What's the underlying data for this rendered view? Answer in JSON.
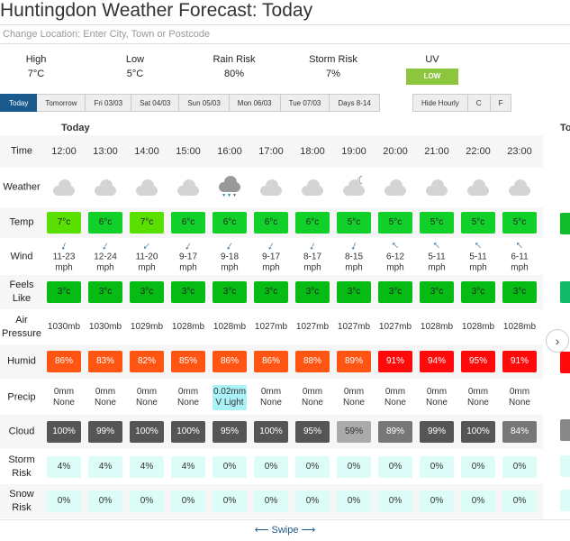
{
  "title": "Huntingdon Weather Forecast: Today",
  "location_placeholder": "Change Location: Enter City, Town or Postcode",
  "summary": {
    "high_label": "High",
    "high": "7°C",
    "low_label": "Low",
    "low": "5°C",
    "rain_label": "Rain Risk",
    "rain": "80%",
    "storm_label": "Storm Risk",
    "storm": "7%",
    "uv_label": "UV",
    "uv": "LOW",
    "uv_color": "#8cc63f"
  },
  "tabs": [
    "Today",
    "Tomorrow",
    "Fri 03/03",
    "Sat 04/03",
    "Sun 05/03",
    "Mon 06/03",
    "Tue 07/03",
    "Days 8-14"
  ],
  "active_tab": 0,
  "options": [
    "Hide Hourly",
    "C",
    "F"
  ],
  "day_label": "Today",
  "next_day_label": "To",
  "row_labels": {
    "time": "Time",
    "weather": "Weather",
    "temp": "Temp",
    "wind": "Wind",
    "feels": "Feels Like",
    "pressure": "Air Pressure",
    "humid": "Humid",
    "precip": "Precip",
    "cloud": "Cloud",
    "storm": "Storm Risk",
    "snow": "Snow Risk"
  },
  "hours": [
    {
      "time": "12:00",
      "weather": "cloud",
      "temp": "7°c",
      "wind": "11-23",
      "wind_dir_deg": 200,
      "feels": "3°c",
      "pressure": "1030mb",
      "humid": "86%",
      "precip_amt": "0mm",
      "precip_desc": "None",
      "cloud": "100%",
      "storm": "4%",
      "snow": "0%"
    },
    {
      "time": "13:00",
      "weather": "cloud",
      "temp": "6°c",
      "wind": "12-24",
      "wind_dir_deg": 210,
      "feels": "3°c",
      "pressure": "1030mb",
      "humid": "83%",
      "precip_amt": "0mm",
      "precip_desc": "None",
      "cloud": "99%",
      "storm": "4%",
      "snow": "0%"
    },
    {
      "time": "14:00",
      "weather": "cloud",
      "temp": "7°c",
      "wind": "11-20",
      "wind_dir_deg": 225,
      "feels": "3°c",
      "pressure": "1029mb",
      "humid": "82%",
      "precip_amt": "0mm",
      "precip_desc": "None",
      "cloud": "100%",
      "storm": "4%",
      "snow": "0%"
    },
    {
      "time": "15:00",
      "weather": "cloud",
      "temp": "6°c",
      "wind": "9-17",
      "wind_dir_deg": 210,
      "feels": "3°c",
      "pressure": "1028mb",
      "humid": "85%",
      "precip_amt": "0mm",
      "precip_desc": "None",
      "cloud": "100%",
      "storm": "4%",
      "snow": "0%"
    },
    {
      "time": "16:00",
      "weather": "rain",
      "temp": "6°c",
      "wind": "9-18",
      "wind_dir_deg": 210,
      "feels": "3°c",
      "pressure": "1028mb",
      "humid": "86%",
      "precip_amt": "0.02mm",
      "precip_desc": "V Light",
      "cloud": "95%",
      "storm": "0%",
      "snow": "0%"
    },
    {
      "time": "17:00",
      "weather": "cloud",
      "temp": "6°c",
      "wind": "9-17",
      "wind_dir_deg": 210,
      "feels": "3°c",
      "pressure": "1027mb",
      "humid": "86%",
      "precip_amt": "0mm",
      "precip_desc": "None",
      "cloud": "100%",
      "storm": "0%",
      "snow": "0%"
    },
    {
      "time": "18:00",
      "weather": "cloud",
      "temp": "6°c",
      "wind": "8-17",
      "wind_dir_deg": 205,
      "feels": "3°c",
      "pressure": "1027mb",
      "humid": "88%",
      "precip_amt": "0mm",
      "precip_desc": "None",
      "cloud": "95%",
      "storm": "0%",
      "snow": "0%"
    },
    {
      "time": "19:00",
      "weather": "partly-cloudy-night",
      "temp": "5°c",
      "wind": "8-15",
      "wind_dir_deg": 200,
      "feels": "3°c",
      "pressure": "1027mb",
      "humid": "89%",
      "precip_amt": "0mm",
      "precip_desc": "None",
      "cloud": "59%",
      "storm": "0%",
      "snow": "0%"
    },
    {
      "time": "20:00",
      "weather": "cloud",
      "temp": "5°c",
      "wind": "6-12",
      "wind_dir_deg": 315,
      "feels": "3°c",
      "pressure": "1027mb",
      "humid": "91%",
      "precip_amt": "0mm",
      "precip_desc": "None",
      "cloud": "89%",
      "storm": "0%",
      "snow": "0%"
    },
    {
      "time": "21:00",
      "weather": "cloud",
      "temp": "5°c",
      "wind": "5-11",
      "wind_dir_deg": 315,
      "feels": "3°c",
      "pressure": "1028mb",
      "humid": "94%",
      "precip_amt": "0mm",
      "precip_desc": "None",
      "cloud": "99%",
      "storm": "0%",
      "snow": "0%"
    },
    {
      "time": "22:00",
      "weather": "cloud",
      "temp": "5°c",
      "wind": "5-11",
      "wind_dir_deg": 315,
      "feels": "3°c",
      "pressure": "1028mb",
      "humid": "95%",
      "precip_amt": "0mm",
      "precip_desc": "None",
      "cloud": "100%",
      "storm": "0%",
      "snow": "0%"
    },
    {
      "time": "23:00",
      "weather": "cloud",
      "temp": "5°c",
      "wind": "6-11",
      "wind_dir_deg": 315,
      "feels": "3°c",
      "pressure": "1028mb",
      "humid": "91%",
      "precip_amt": "0mm",
      "precip_desc": "None",
      "cloud": "84%",
      "storm": "0%",
      "snow": "0%"
    }
  ],
  "wind_unit": "mph",
  "swipe_label": "⟵ Swipe ⟶",
  "colors": {
    "temp_7": "#5ae000",
    "temp_6": "#12d02a",
    "temp_5": "#12d02a",
    "feels": "#06bb14",
    "humid_orange": "#ff5512",
    "humid_red": "#ff0a0a",
    "cloud_dark": "#555555",
    "cloud_mid": "#777777",
    "cloud_light": "#aaaaaa",
    "risk_bg": "#dcfcf8",
    "precip_light": "#aaf2f8",
    "accent": "#1a5a8c"
  }
}
